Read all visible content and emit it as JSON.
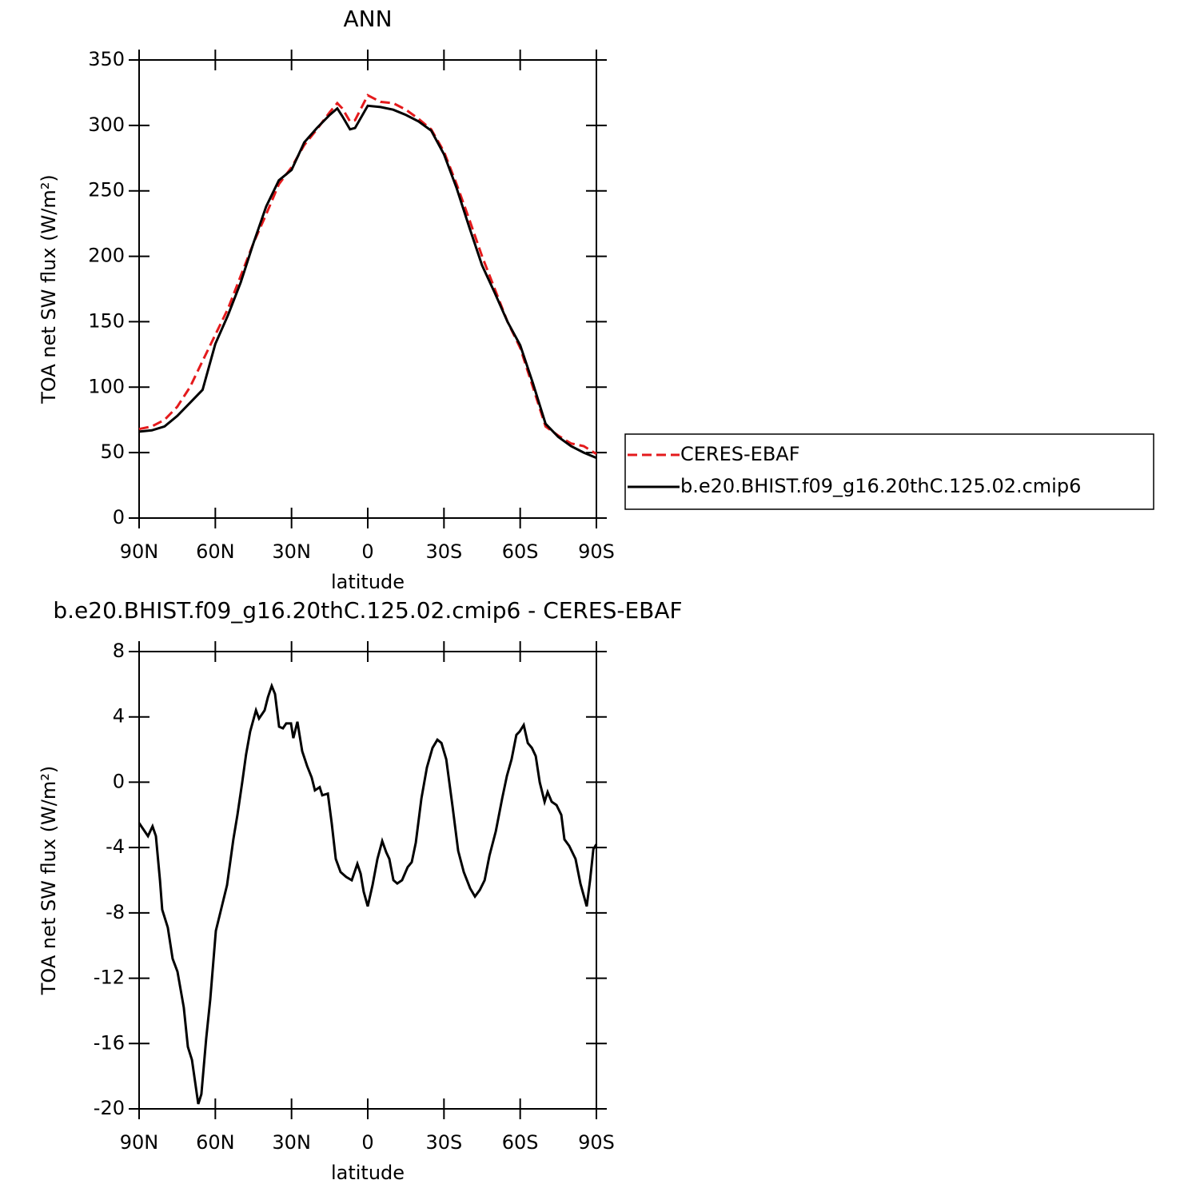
{
  "chart_data": [
    {
      "type": "line",
      "title": "ANN",
      "xlabel": "latitude",
      "ylabel": "TOA net SW flux (W/m²)",
      "x": [
        90,
        85,
        80,
        75,
        70,
        65,
        60,
        55,
        50,
        45,
        40,
        35,
        30,
        25,
        20,
        15,
        12,
        10,
        7,
        5,
        0,
        -5,
        -10,
        -15,
        -20,
        -25,
        -30,
        -35,
        -40,
        -45,
        -50,
        -55,
        -60,
        -65,
        -70,
        -75,
        -80,
        -85,
        -90
      ],
      "series": [
        {
          "name": "CERES-EBAF",
          "color": "#e41a1c",
          "linestyle": "dashed",
          "values": [
            68,
            70,
            75,
            85,
            100,
            120,
            140,
            160,
            185,
            210,
            232,
            255,
            268,
            285,
            297,
            310,
            317,
            313,
            303,
            304,
            323,
            318,
            317,
            312,
            305,
            297,
            280,
            255,
            228,
            200,
            175,
            150,
            130,
            100,
            70,
            63,
            57,
            55,
            49
          ]
        },
        {
          "name": "b.e20.BHIST.f09_g16.20thC.125.02.cmip6",
          "color": "#000000",
          "linestyle": "solid",
          "values": [
            66,
            67,
            70,
            78,
            88,
            98,
            133,
            155,
            180,
            210,
            238,
            258,
            266,
            287,
            298,
            308,
            313,
            307,
            297,
            298,
            315,
            314,
            312,
            308,
            303,
            296,
            278,
            252,
            222,
            193,
            172,
            150,
            132,
            103,
            72,
            62,
            55,
            50,
            46
          ]
        }
      ],
      "legend": "right",
      "xlim": [
        90,
        -90
      ],
      "xticks": [
        {
          "value": 90,
          "label": "90N"
        },
        {
          "value": 60,
          "label": "60N"
        },
        {
          "value": 30,
          "label": "30N"
        },
        0,
        {
          "value": -30,
          "label": "30S"
        },
        {
          "value": -60,
          "label": "60S"
        },
        {
          "value": -90,
          "label": "90S"
        }
      ],
      "ylim": [
        0,
        350
      ],
      "yticks": [
        0,
        50,
        100,
        150,
        200,
        250,
        300,
        350
      ]
    },
    {
      "type": "line",
      "title": "b.e20.BHIST.f09_g16.20thC.125.02.cmip6 - CERES-EBAF",
      "xlabel": "latitude",
      "ylabel": "TOA net SW flux (W/m²)",
      "x": [
        90,
        86.5,
        84.7,
        83.4,
        81.8,
        80.9,
        78.7,
        76.8,
        74.9,
        72.4,
        70.8,
        69.2,
        66.7,
        65.5,
        63.6,
        62,
        59.8,
        57.6,
        55.4,
        52.9,
        51.3,
        49.4,
        47.9,
        46.3,
        44,
        42.8,
        40.6,
        39.3,
        37.8,
        36.5,
        34.9,
        33.4,
        32.1,
        30.2,
        29.3,
        27.7,
        25.8,
        23.9,
        22.1,
        20.8,
        18.9,
        17.9,
        15.7,
        14.2,
        12.6,
        10.7,
        8.5,
        6.3,
        4.1,
        2.8,
        1.6,
        0,
        -1.9,
        -3.8,
        -5.7,
        -7.3,
        -8.5,
        -10.1,
        -11.6,
        -13.5,
        -15.7,
        -17.3,
        -18.9,
        -21.1,
        -23.3,
        -25.5,
        -27.4,
        -29,
        -30.9,
        -33.4,
        -35.6,
        -37.8,
        -40.3,
        -42.2,
        -44.1,
        -46,
        -47.9,
        -50.4,
        -52.9,
        -54.8,
        -56.6,
        -58.5,
        -59.8,
        -61.4,
        -63,
        -64.6,
        -66.1,
        -67.7,
        -69.6,
        -70.8,
        -72.4,
        -74.3,
        -76.2,
        -77.4,
        -79.3,
        -81.8,
        -83.7,
        -86.2,
        -87.5,
        -88.8,
        -90
      ],
      "series": [
        {
          "color": "#000000",
          "linestyle": "solid",
          "values": [
            -2.5,
            -3.3,
            -2.7,
            -3.3,
            -6,
            -7.8,
            -8.9,
            -10.8,
            -11.6,
            -13.8,
            -16.2,
            -17,
            -19.7,
            -19.1,
            -15.7,
            -13.3,
            -9.1,
            -7.7,
            -6.3,
            -3.5,
            -2,
            0,
            1.7,
            3.1,
            4.4,
            3.9,
            4.4,
            5.2,
            5.9,
            5.4,
            3.4,
            3.3,
            3.6,
            3.6,
            2.7,
            3.7,
            1.9,
            1,
            0.3,
            -0.5,
            -0.3,
            -0.8,
            -0.7,
            -2.5,
            -4.7,
            -5.5,
            -5.8,
            -6,
            -5,
            -5.6,
            -6.7,
            -7.6,
            -6.3,
            -4.7,
            -3.6,
            -4.3,
            -4.7,
            -6,
            -6.2,
            -6,
            -5.2,
            -4.9,
            -3.7,
            -1,
            0.9,
            2.1,
            2.6,
            2.4,
            1.4,
            -1.5,
            -4.2,
            -5.5,
            -6.5,
            -7,
            -6.6,
            -6,
            -4.5,
            -3,
            -1,
            0.4,
            1.4,
            2.9,
            3.1,
            3.5,
            2.4,
            2.1,
            1.6,
            0,
            -1.2,
            -0.6,
            -1.2,
            -1.4,
            -2,
            -3.5,
            -3.9,
            -4.7,
            -6.2,
            -7.6,
            -6,
            -4.1,
            -3.8
          ]
        }
      ],
      "xlim": [
        90,
        -90
      ],
      "xticks": [
        {
          "value": 90,
          "label": "90N"
        },
        {
          "value": 60,
          "label": "60N"
        },
        {
          "value": 30,
          "label": "30N"
        },
        0,
        {
          "value": -30,
          "label": "30S"
        },
        {
          "value": -60,
          "label": "60S"
        },
        {
          "value": -90,
          "label": "90S"
        }
      ],
      "ylim": [
        -20,
        8
      ],
      "yticks": [
        -20,
        -16,
        -12,
        -8,
        -4,
        0,
        4,
        8
      ]
    }
  ]
}
